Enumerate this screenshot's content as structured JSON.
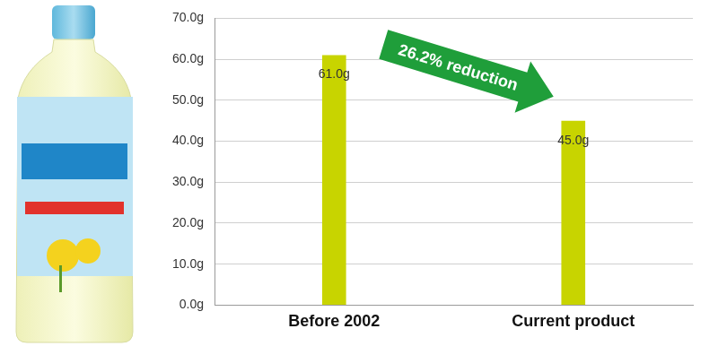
{
  "chart_data": {
    "type": "bar",
    "categories": [
      "Before 2002",
      "Current product"
    ],
    "values": [
      61.0,
      45.0
    ],
    "value_labels": [
      "61.0g",
      "45.0g"
    ],
    "color": "#c8d400",
    "ylim": [
      0,
      70
    ],
    "yticks": [
      {
        "value": 0,
        "label": "0.0g"
      },
      {
        "value": 10,
        "label": "10.0g"
      },
      {
        "value": 20,
        "label": "20.0g"
      },
      {
        "value": 30,
        "label": "30.0g"
      },
      {
        "value": 40,
        "label": "40.0g"
      },
      {
        "value": 50,
        "label": "50.0g"
      },
      {
        "value": 60,
        "label": "60.0g"
      },
      {
        "value": 70,
        "label": "70.0g"
      }
    ],
    "grid": true,
    "data_labels": true,
    "annotations": [
      "26.2% reduction"
    ]
  }
}
